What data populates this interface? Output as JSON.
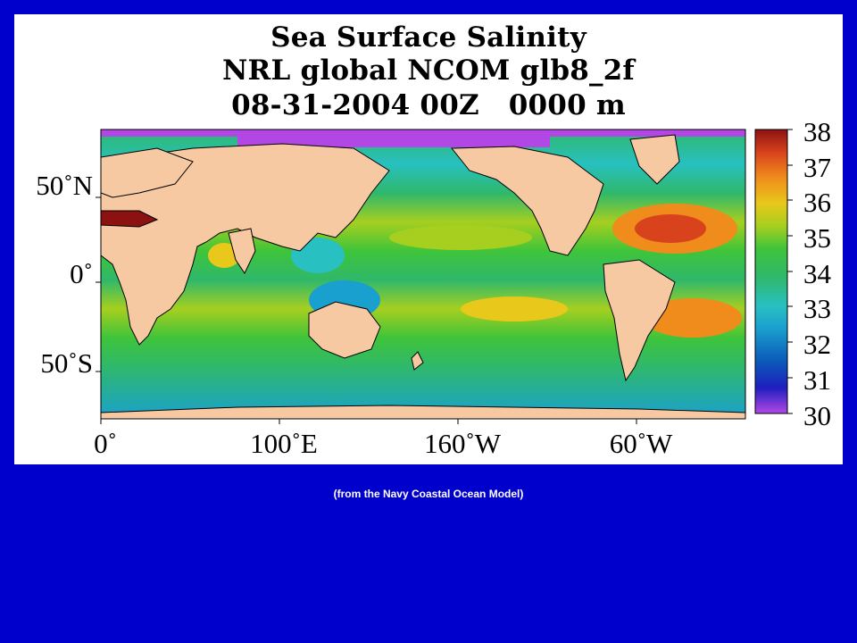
{
  "figure": {
    "title_line1": "Sea Surface Salinity",
    "title_line2": "NRL global NCOM glb8_2f",
    "title_line3": "08-31-2004 00Z   0000 m"
  },
  "map": {
    "lat_labels": [
      "50˚N",
      "0˚",
      "50˚S"
    ],
    "lon_labels": [
      "0˚",
      "100˚E",
      "160˚W",
      "60˚W"
    ],
    "land_color": "#f6c9a2",
    "sea_ice_color": "#b347e6"
  },
  "colorbar": {
    "labels": [
      "38",
      "37",
      "36",
      "35",
      "34",
      "33",
      "32",
      "31",
      "30"
    ],
    "min": 30,
    "max": 38,
    "colors": [
      "#b347e6",
      "#1f1fbf",
      "#0b57b8",
      "#1aa0cf",
      "#28c0c0",
      "#2fb86b",
      "#3fc43a",
      "#a6cf1f",
      "#e8c81a",
      "#ef8c1c",
      "#d8421c",
      "#8c1212"
    ]
  },
  "caption": "(from the Navy Coastal Ocean Model)"
}
